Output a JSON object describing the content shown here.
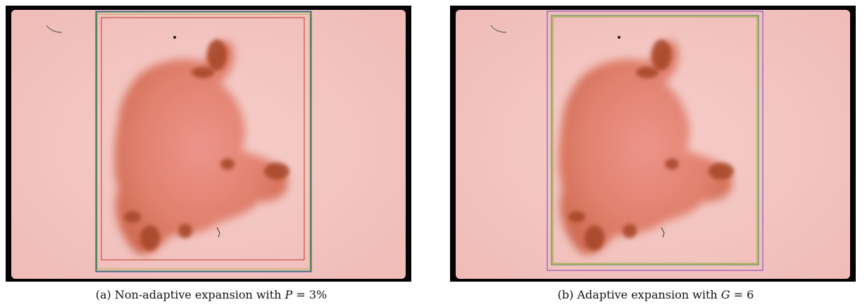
{
  "panels": [
    {
      "caption": {
        "tag": "(a)",
        "text_before": "Non-adaptive expansion with",
        "var": "P",
        "text_after": "= 3%"
      }
    },
    {
      "caption": {
        "tag": "(b)",
        "text_before": "Adaptive expansion with",
        "var": "G",
        "text_after": "= 6"
      }
    }
  ],
  "colors": {
    "skin": "#f4c6c2",
    "lesion": "#d9735a",
    "lesion_dark": "#a6482a",
    "border_black": "#050303",
    "box_red": "#c0392b",
    "box_green": "#3a8a3a",
    "box_blue": "#3b4cc0",
    "box_purple": "#7a3fc8",
    "box_yellow_green": "#8aa82a"
  }
}
